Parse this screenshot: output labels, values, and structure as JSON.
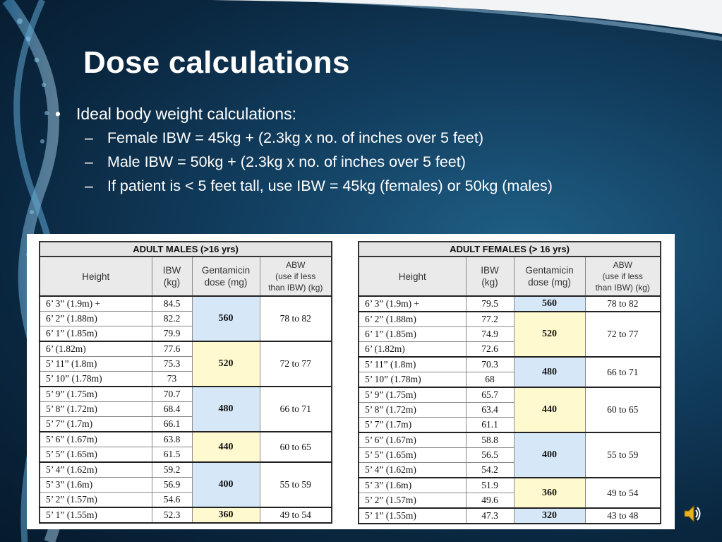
{
  "slide": {
    "title": "Dose calculations",
    "bullet": {
      "marker": "•",
      "text": "Ideal body weight calculations:",
      "subs": [
        "Female IBW = 45kg + (2.3kg x no. of inches over 5 feet)",
        "Male IBW = 50kg + (2.3kg x no. of inches over 5 feet)",
        "If patient is < 5 feet tall, use IBW = 45kg (females) or 50kg (males)"
      ],
      "sub_marker": "–"
    }
  },
  "colors": {
    "blue_cell": "#d6e8f8",
    "yellow_cell": "#fff9cf",
    "header_bg": "#eaeaea"
  },
  "headers": {
    "height": "Height",
    "ibw_1": "IBW",
    "ibw_2": "(kg)",
    "gent_1": "Gentamicin",
    "gent_2": "dose (mg)",
    "abw_1": "ABW",
    "abw_2": "(use if less",
    "abw_3": "than IBW) (kg)"
  },
  "males": {
    "caption": "ADULT MALES (>16 yrs)",
    "rows": [
      {
        "height": "6’ 3”  (1.9m) +",
        "ibw": "84.5"
      },
      {
        "height": "6’ 2”  (1.88m)",
        "ibw": "82.2"
      },
      {
        "height": "6’ 1”  (1.85m)",
        "ibw": "79.9"
      },
      {
        "height": "6’      (1.82m)",
        "ibw": "77.6"
      },
      {
        "height": "5’ 11” (1.8m)",
        "ibw": "75.3"
      },
      {
        "height": "5’ 10” (1.78m)",
        "ibw": "73"
      },
      {
        "height": "5’ 9”  (1.75m)",
        "ibw": "70.7"
      },
      {
        "height": "5’ 8”  (1.72m)",
        "ibw": "68.4"
      },
      {
        "height": "5’ 7”  (1.7m)",
        "ibw": "66.1"
      },
      {
        "height": "5’ 6”  (1.67m)",
        "ibw": "63.8"
      },
      {
        "height": "5’ 5”  (1.65m)",
        "ibw": "61.5"
      },
      {
        "height": "5’ 4”  (1.62m)",
        "ibw": "59.2"
      },
      {
        "height": "5’ 3”  (1.6m)",
        "ibw": "56.9"
      },
      {
        "height": "5’ 2”  (1.57m)",
        "ibw": "54.6"
      },
      {
        "height": "5’ 1”  (1.55m)",
        "ibw": "52.3"
      }
    ],
    "groups": [
      {
        "dose": "560",
        "abw": "78 to 82"
      },
      {
        "dose": "520",
        "abw": "72 to 77"
      },
      {
        "dose": "480",
        "abw": "66 to 71"
      },
      {
        "dose": "440",
        "abw": "60 to 65"
      },
      {
        "dose": "400",
        "abw": "55 to 59"
      },
      {
        "dose": "360",
        "abw": "49 to 54"
      }
    ]
  },
  "females": {
    "caption": "ADULT FEMALES (> 16 yrs)",
    "rows": [
      {
        "height": "6’ 3”  (1.9m) +",
        "ibw": "79.5"
      },
      {
        "height": "6’ 2”  (1.88m)",
        "ibw": "77.2"
      },
      {
        "height": "6’ 1”  (1.85m)",
        "ibw": "74.9"
      },
      {
        "height": "6’  (1.82m)",
        "ibw": "72.6"
      },
      {
        "height": "5’ 11”  (1.8m)",
        "ibw": "70.3"
      },
      {
        "height": "5’ 10”  (1.78m)",
        "ibw": "68"
      },
      {
        "height": "5’ 9”  (1.75m)",
        "ibw": "65.7"
      },
      {
        "height": "5’ 8”  (1.72m)",
        "ibw": "63.4"
      },
      {
        "height": "5’ 7”  (1.7m)",
        "ibw": "61.1"
      },
      {
        "height": "5’ 6”  (1.67m)",
        "ibw": "58.8"
      },
      {
        "height": "5’ 5”  (1.65m)",
        "ibw": "56.5"
      },
      {
        "height": "5’ 4”  (1.62m)",
        "ibw": "54.2"
      },
      {
        "height": "5’ 3”  (1.6m)",
        "ibw": "51.9"
      },
      {
        "height": "5’ 2”  (1.57m)",
        "ibw": "49.6"
      },
      {
        "height": "5’ 1”  (1.55m)",
        "ibw": "47.3"
      }
    ],
    "groups": [
      {
        "dose": "560"
      },
      {
        "dose": "520"
      },
      {
        "dose": "480"
      },
      {
        "dose": "440"
      },
      {
        "dose": "400"
      },
      {
        "dose": "360"
      },
      {
        "dose": "320"
      }
    ],
    "abw_groups": [
      {
        "abw": "78 to 82"
      },
      {
        "abw": "72 to 77"
      },
      {
        "abw": "66 to 71"
      },
      {
        "abw": "60 to 65"
      },
      {
        "abw": "55 to 59"
      },
      {
        "abw": "49 to 54"
      },
      {
        "abw": "43 to 48"
      }
    ]
  },
  "icons": {
    "speaker": "speaker-icon"
  }
}
